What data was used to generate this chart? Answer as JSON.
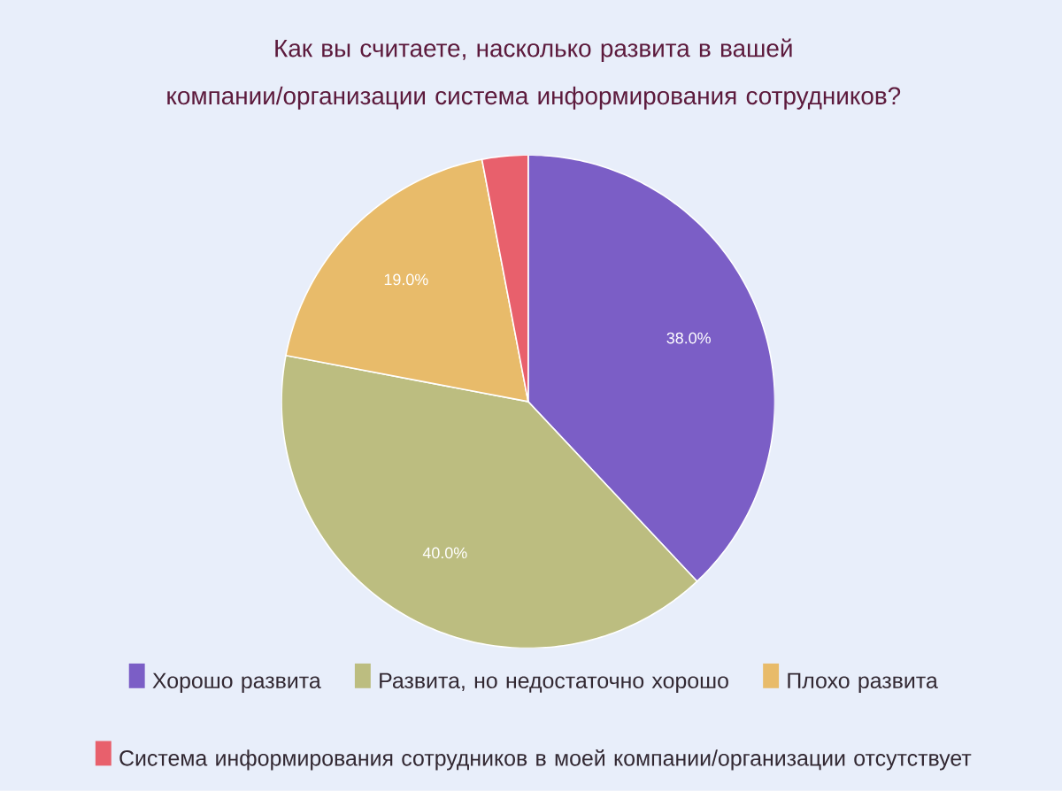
{
  "chart_data": {
    "type": "pie",
    "title": "Как вы считаете, насколько развита в вашей компании/организации система информирования сотрудников?",
    "categories": [
      "Хорошо развита",
      "Развита, но недостаточно хорошо",
      "Плохо развита",
      "Система информирования сотрудников в моей компании/организации отсутствует"
    ],
    "values": [
      38,
      40,
      19,
      3
    ],
    "colors": [
      "#7b5ec6",
      "#bcbd80",
      "#e8bb6a",
      "#e8606c"
    ],
    "value_labels": [
      "38.0%",
      "40.0%",
      "19.0%",
      null
    ],
    "legend": "bottom"
  }
}
